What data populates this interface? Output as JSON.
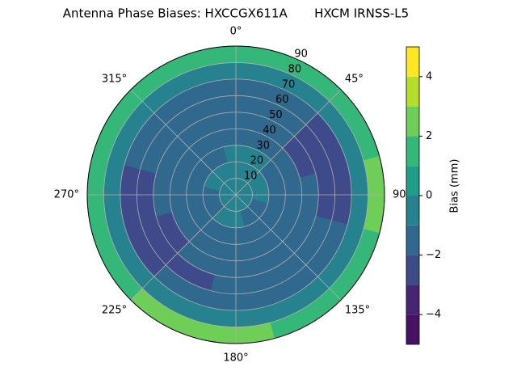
{
  "chart_data": {
    "type": "polar-contour",
    "title": "Antenna Phase Biases: HXCCGX611A       HXCM IRNSS-L5",
    "theta_zero": "N",
    "theta_direction": "clockwise",
    "rlim": [
      0,
      90
    ],
    "rticks": [
      10,
      20,
      30,
      40,
      50,
      60,
      70,
      80,
      90
    ],
    "thetaticks": [
      {
        "value": 0,
        "label": "0°"
      },
      {
        "value": 45,
        "label": "45°"
      },
      {
        "value": 90,
        "label": "90°"
      },
      {
        "value": 135,
        "label": "135°"
      },
      {
        "value": 180,
        "label": "180°"
      },
      {
        "value": 225,
        "label": "225°"
      },
      {
        "value": 270,
        "label": "270°"
      },
      {
        "value": 315,
        "label": "315°"
      }
    ],
    "grid": true,
    "azimuth": [
      0,
      30,
      60,
      90,
      120,
      150,
      180,
      210,
      240,
      270,
      300,
      330
    ],
    "radius_edges": [
      0,
      10,
      20,
      30,
      40,
      50,
      60,
      70,
      80,
      90
    ],
    "values": [
      [
        -0.5,
        -0.5,
        -0.5,
        -0.5,
        -0.5,
        -0.5,
        -0.5,
        -0.5,
        -0.5,
        -0.5,
        -0.5,
        -0.5
      ],
      [
        -0.5,
        -0.5,
        -0.5,
        -0.5,
        -1.5,
        -1.5,
        -0.5,
        -0.5,
        -1.5,
        -1.5,
        -0.5,
        -0.5
      ],
      [
        -0.5,
        -0.5,
        -1.5,
        -1.5,
        -1.5,
        -1.5,
        -1.5,
        -1.5,
        -1.5,
        -1.5,
        -1.5,
        -1.5
      ],
      [
        -1.5,
        -1.5,
        -1.5,
        -1.5,
        -1.5,
        -1.5,
        -1.5,
        -1.5,
        -1.5,
        -1.5,
        -1.5,
        -1.5
      ],
      [
        -1.5,
        -1.5,
        -2.5,
        -1.5,
        -1.5,
        -1.5,
        -1.5,
        -1.5,
        -2.5,
        -1.5,
        -1.5,
        -1.5
      ],
      [
        -1.5,
        -1.5,
        -2.5,
        -2.5,
        -1.5,
        -1.5,
        -1.5,
        -2.5,
        -2.5,
        -2.5,
        -1.5,
        -1.5
      ],
      [
        -1.5,
        -1.5,
        -2.5,
        -2.5,
        -1.5,
        -1.5,
        -1.5,
        -1.5,
        -2.5,
        -2.5,
        -1.5,
        -1.5
      ],
      [
        -0.5,
        -0.5,
        -0.5,
        -0.5,
        -0.5,
        -0.5,
        -0.5,
        -0.5,
        -0.5,
        -0.5,
        -0.5,
        -0.5
      ],
      [
        1.5,
        1.5,
        1.5,
        2.5,
        1.5,
        1.5,
        2.5,
        2.5,
        1.5,
        1.5,
        1.5,
        1.5
      ]
    ],
    "levels": [
      -5,
      -4,
      -3,
      -2,
      -1,
      0,
      1,
      2,
      3,
      4,
      5
    ],
    "colors": [
      "#471164",
      "#482475",
      "#3e4a89",
      "#31688e",
      "#26828e",
      "#1f9e89",
      "#35b779",
      "#6ece58",
      "#b5de2b",
      "#fde725"
    ],
    "colorbar_label": "Bias (mm)",
    "colorbar_lim": [
      -5,
      5
    ],
    "colorbar_ticks": [
      {
        "value": -4,
        "label": "−4"
      },
      {
        "value": -2,
        "label": "−2"
      },
      0,
      2,
      4
    ]
  }
}
